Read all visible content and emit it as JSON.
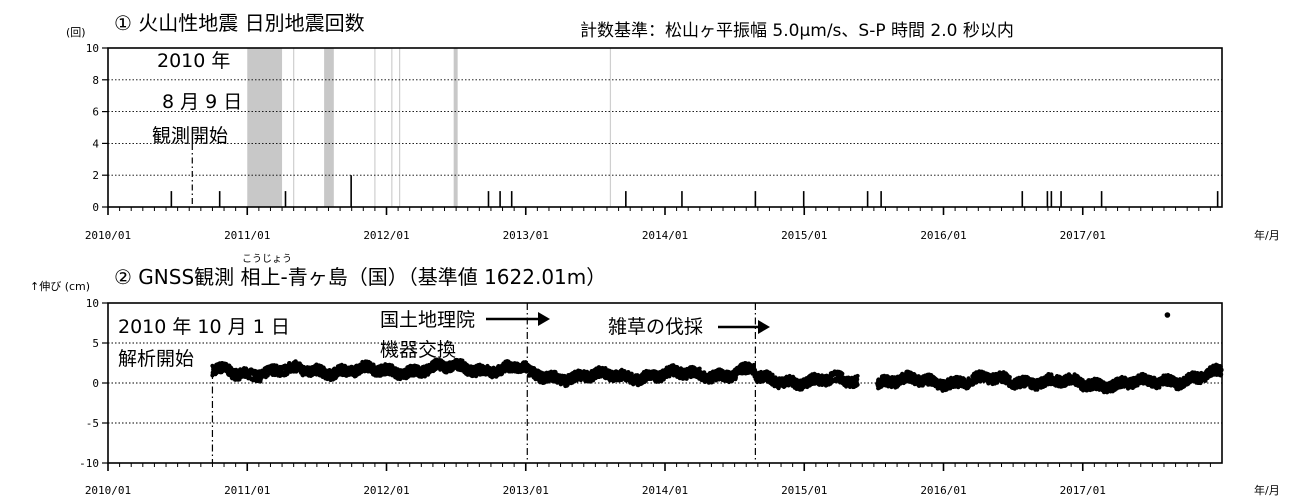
{
  "chart_data": [
    {
      "type": "bar",
      "title": "① 火山性地震 日別地震回数",
      "subtitle": "計数基準：松山ヶ平振幅 5.0μm/s、S-P 時間 2.0 秒以内",
      "ylabel": "(回)",
      "xlabel": "年/月",
      "ylim": [
        0,
        10
      ],
      "yticks": [
        "0",
        "2",
        "4",
        "6",
        "8",
        "10"
      ],
      "xlim": [
        "2010/01",
        "2017/12"
      ],
      "xticks": [
        "2010/01",
        "2011/01",
        "2012/01",
        "2013/01",
        "2014/01",
        "2015/01",
        "2016/01",
        "2017/01"
      ],
      "grid": true,
      "series": [
        {
          "x": [
            "2010/06/15",
            "2010/10/20",
            "2011/04/10",
            "2011/09/30",
            "2012/09/25",
            "2012/10/25",
            "2012/11/25",
            "2013/09/20",
            "2014/02/15",
            "2014/08/25",
            "2014/12/30",
            "2015/06/15",
            "2015/07/20",
            "2016/07/25",
            "2016/09/30",
            "2016/10/10",
            "2016/11/05",
            "2017/02/20",
            "2017/12/20"
          ],
          "values": [
            1,
            1,
            1,
            2,
            1,
            1,
            1,
            1,
            1,
            1,
            1,
            1,
            1,
            1,
            1,
            1,
            1,
            1,
            1
          ]
        }
      ],
      "gaps": [
        [
          "2011/01/01",
          "2011/04/01"
        ],
        [
          "2011/07/20",
          "2011/08/15"
        ],
        [
          "2012/06/25",
          "2012/07/05"
        ]
      ],
      "gap_lines": [
        "2011/05/01",
        "2011/12/01",
        "2012/01/15",
        "2012/02/05",
        "2013/08/10"
      ],
      "annotations": [
        {
          "lines": [
            "2010 年",
            "8 月 9 日",
            "観測開始"
          ],
          "x": "2010/08/09"
        }
      ]
    },
    {
      "type": "scatter",
      "title": "② GNSS観測 相上-青ヶ島（国）（基準値 1622.01m）",
      "ruby": "こうじょう",
      "ylabel": "↑伸び (cm)",
      "xlabel": "年/月",
      "ylim": [
        -10,
        10
      ],
      "yticks": [
        "-10",
        "-5",
        "0",
        "5",
        "10"
      ],
      "xlim": [
        "2010/01",
        "2017/12"
      ],
      "xticks": [
        "2010/01",
        "2011/01",
        "2012/01",
        "2013/01",
        "2014/01",
        "2015/01",
        "2016/01",
        "2017/01"
      ],
      "grid": true,
      "series": [
        {
          "trend": [
            [
              "2010/10/01",
              1.5
            ],
            [
              "2011/01/01",
              1.3
            ],
            [
              "2011/07/01",
              1.6
            ],
            [
              "2012/01/01",
              1.5
            ],
            [
              "2012/07/01",
              1.9
            ],
            [
              "2012/12/31",
              1.7
            ],
            [
              "2013/01/10",
              0.9
            ],
            [
              "2013/07/01",
              0.8
            ],
            [
              "2014/01/01",
              1.0
            ],
            [
              "2014/07/01",
              1.2
            ],
            [
              "2014/08/20",
              1.6
            ],
            [
              "2014/09/01",
              0.4
            ],
            [
              "2015/01/01",
              0.3
            ],
            [
              "2015/07/01",
              0.2
            ],
            [
              "2016/01/01",
              0.2
            ],
            [
              "2016/07/01",
              0.4
            ],
            [
              "2017/01/01",
              -0.1
            ],
            [
              "2017/07/01",
              0.0
            ],
            [
              "2017/12/31",
              1.2
            ]
          ],
          "gap": [
            "2015/05/20",
            "2015/07/10"
          ],
          "outlier": [
            "2017/08/10",
            8.5
          ]
        }
      ],
      "annotations": [
        {
          "lines": [
            "2010 年 10 月 1 日",
            "解析開始"
          ],
          "x": "2010/10/01"
        },
        {
          "lines": [
            "国土地理院",
            "機器交換"
          ],
          "x": "2013/01/05"
        },
        {
          "lines": [
            "雑草の伐採"
          ],
          "x": "2014/08/25"
        }
      ]
    }
  ]
}
